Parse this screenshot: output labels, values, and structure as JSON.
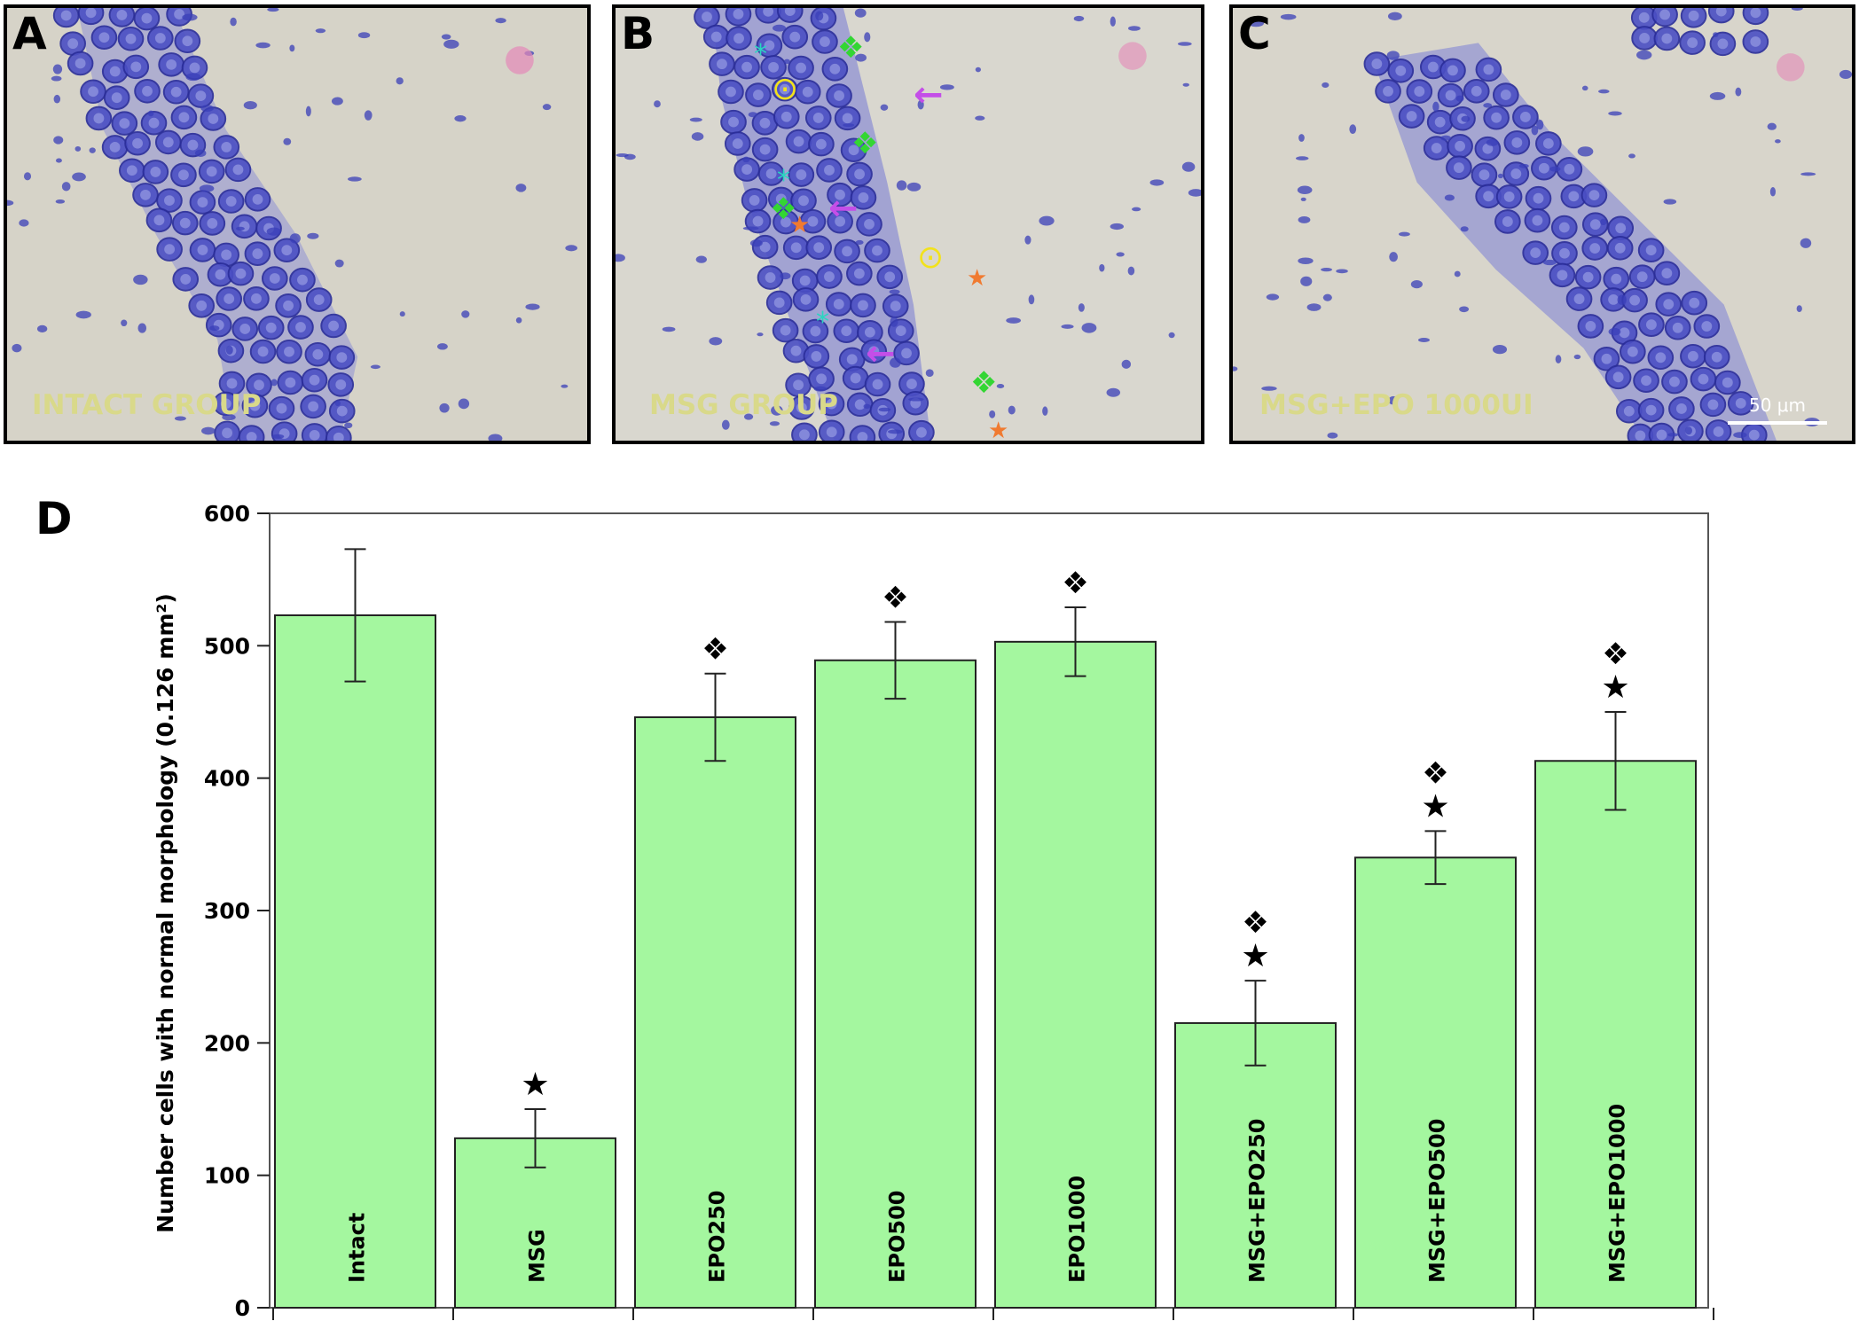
{
  "panels": [
    {
      "letter": "A",
      "label": "INTACT GROUP"
    },
    {
      "letter": "B",
      "label": "MSG GROUP"
    },
    {
      "letter": "C",
      "label": "MSG+EPO 1000UI",
      "scale_bar": "50 μm"
    }
  ],
  "marker_icons": {
    "asterisk": "*",
    "diamond": "❖",
    "arrow": "←",
    "star": "★",
    "circle": "⊙"
  },
  "colors": {
    "stain": "#3a3fb8",
    "stain_dark": "#2a2d9a",
    "background_tissue": "#d7d4c9",
    "bar_fill": "#a4f79f",
    "label_yellow": "#d9d98a",
    "marker_cyan": "#2ad6c0",
    "marker_green": "#33d633",
    "marker_magenta": "#c44ee8",
    "marker_orange": "#f07a30",
    "marker_yellow": "#f2e21c"
  },
  "chart_letter": "D",
  "chart_data": {
    "type": "bar",
    "categories": [
      "Intact",
      "MSG",
      "EPO250",
      "EPO500",
      "EPO1000",
      "MSG+EPO250",
      "MSG+EPO500",
      "MSG+EPO1000"
    ],
    "values": [
      523,
      128,
      446,
      489,
      503,
      215,
      340,
      413
    ],
    "errors": [
      50,
      22,
      33,
      29,
      26,
      32,
      20,
      37
    ],
    "significance": [
      {
        "star": false,
        "diamond": false
      },
      {
        "star": true,
        "diamond": false
      },
      {
        "star": false,
        "diamond": true
      },
      {
        "star": false,
        "diamond": true
      },
      {
        "star": false,
        "diamond": true
      },
      {
        "star": true,
        "diamond": true
      },
      {
        "star": true,
        "diamond": true
      },
      {
        "star": true,
        "diamond": true
      }
    ],
    "title": "",
    "xlabel": "",
    "ylabel": "Number cells with normal morphology (0.126 mm²)",
    "ylim": [
      0,
      600
    ],
    "yticks": [
      0,
      100,
      200,
      300,
      400,
      500,
      600
    ],
    "grid": false,
    "legend": "none",
    "star_symbol": "★",
    "diamond_symbol": "❖"
  }
}
